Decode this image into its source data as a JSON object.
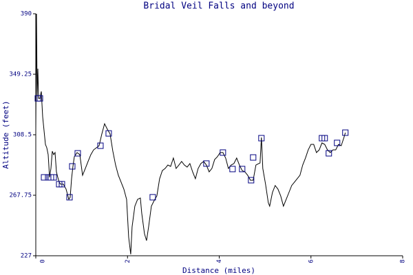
{
  "chart_data": {
    "type": "line",
    "title": "Bridal Veil Falls and beyond",
    "x_label": "Distance (miles)",
    "y_label": "Altitude (feet)",
    "color": "#000000",
    "marker_color": "#000080",
    "grid": false,
    "xlim": [
      0,
      8
    ],
    "xticks": [
      0,
      2,
      4,
      6,
      8
    ],
    "ylim": [
      227,
      390
    ],
    "yticks": [
      227,
      267.75,
      308.5,
      349.25,
      390
    ],
    "x": [
      0,
      0.015,
      0.03,
      0.045,
      0.06,
      0.09,
      0.12,
      0.15,
      0.18,
      0.21,
      0.24,
      0.27,
      0.3,
      0.33,
      0.36,
      0.39,
      0.42,
      0.45,
      0.48,
      0.51,
      0.54,
      0.6,
      0.66,
      0.72,
      0.75,
      0.78,
      0.81,
      0.84,
      0.9,
      0.96,
      1.02,
      1.08,
      1.14,
      1.2,
      1.26,
      1.32,
      1.38,
      1.44,
      1.5,
      1.56,
      1.62,
      1.68,
      1.74,
      1.8,
      1.86,
      1.92,
      1.98,
      2.025,
      2.07,
      2.1,
      2.16,
      2.22,
      2.28,
      2.31,
      2.37,
      2.415,
      2.46,
      2.52,
      2.58,
      2.64,
      2.7,
      2.76,
      2.82,
      2.88,
      2.94,
      3.0,
      3.06,
      3.12,
      3.18,
      3.24,
      3.3,
      3.36,
      3.42,
      3.48,
      3.54,
      3.6,
      3.66,
      3.72,
      3.78,
      3.84,
      3.9,
      3.96,
      4.02,
      4.08,
      4.14,
      4.2,
      4.26,
      4.32,
      4.38,
      4.44,
      4.5,
      4.56,
      4.62,
      4.68,
      4.74,
      4.8,
      4.86,
      4.89,
      4.92,
      4.95,
      5.01,
      5.07,
      5.1,
      5.16,
      5.22,
      5.28,
      5.34,
      5.4,
      5.46,
      5.52,
      5.58,
      5.64,
      5.7,
      5.76,
      5.82,
      5.88,
      5.94,
      6.0,
      6.06,
      6.12,
      6.18,
      6.24,
      6.3,
      6.36,
      6.42,
      6.48,
      6.54,
      6.6,
      6.66,
      6.72,
      6.75
    ],
    "values": [
      311.3,
      390,
      334.4,
      353.0,
      333.0,
      333.0,
      337.7,
      320.6,
      311.3,
      302.0,
      299.7,
      295.1,
      279.8,
      285.8,
      297.4,
      295.1,
      296.5,
      283.5,
      279.8,
      276.6,
      275.2,
      275.2,
      271.9,
      265.0,
      266.4,
      278.9,
      287.2,
      293.7,
      296.5,
      295.1,
      281.2,
      285.8,
      290.5,
      295.1,
      298.3,
      299.7,
      301.1,
      309.0,
      315.9,
      312.2,
      309.0,
      297.4,
      288.1,
      281.2,
      276.6,
      271.9,
      265.0,
      239.5,
      228.0,
      246.5,
      260.4,
      265.0,
      265.9,
      255.7,
      241.8,
      237.2,
      246.5,
      260.4,
      264.1,
      267.3,
      278.9,
      284.4,
      285.8,
      288.1,
      287.2,
      292.8,
      285.8,
      288.1,
      290.5,
      288.1,
      286.7,
      289.1,
      283.5,
      278.9,
      285.8,
      289.1,
      290.5,
      288.1,
      283.5,
      285.8,
      291.8,
      293.7,
      296.5,
      296.5,
      292.8,
      285.8,
      288.1,
      289.1,
      292.8,
      288.1,
      284.4,
      283.5,
      281.2,
      277.9,
      277.9,
      288.1,
      289.1,
      289.5,
      306.7,
      285.8,
      275.2,
      262.7,
      260.4,
      269.6,
      274.3,
      271.9,
      267.3,
      260.4,
      265.0,
      269.6,
      274.3,
      276.6,
      278.9,
      281.2,
      288.1,
      292.8,
      298.3,
      302.0,
      302.0,
      296.5,
      298.3,
      303.0,
      302.0,
      298.3,
      296.5,
      298.3,
      298.3,
      302.0,
      301.1,
      306.7,
      309.9
    ],
    "markers": {
      "x": [
        0.045,
        0.09,
        0.18,
        0.27,
        0.33,
        0.39,
        0.51,
        0.57,
        0.735,
        0.795,
        0.915,
        1.41,
        1.59,
        2.55,
        3.72,
        4.08,
        4.29,
        4.5,
        4.695,
        4.74,
        4.92,
        6.24,
        6.3,
        6.39,
        6.57,
        6.75
      ],
      "values": [
        333.0,
        333.0,
        279.8,
        279.8,
        279.8,
        279.8,
        275.2,
        275.2,
        266.4,
        287.2,
        296.0,
        301.1,
        309.4,
        266.4,
        289.1,
        296.5,
        285.4,
        285.4,
        277.9,
        293.2,
        306.2,
        306.2,
        306.2,
        296.0,
        303.0,
        309.9
      ]
    }
  }
}
